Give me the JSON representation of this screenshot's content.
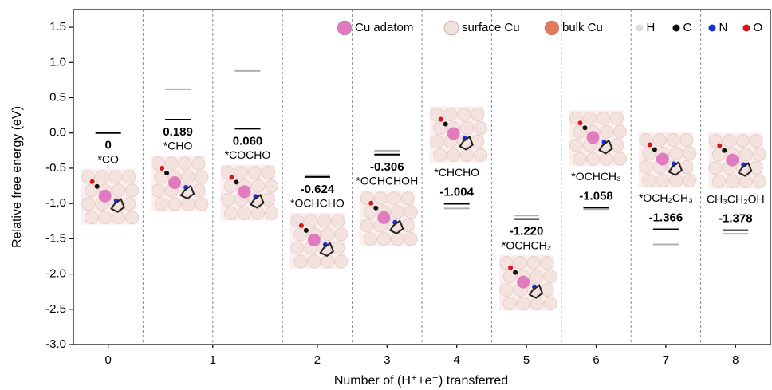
{
  "chart_data": {
    "type": "energy_levels",
    "y_label": "Relative free energy (eV)",
    "x_label": "Number of (H⁺+e⁻) transferred",
    "ylim": [
      -3.0,
      1.75
    ],
    "yticks": [
      1.5,
      {
        "value": 1,
        "label": "1.0"
      },
      0.5,
      {
        "value": 0,
        "label": "0.0"
      },
      -0.5,
      {
        "value": -1,
        "label": "-1.0"
      },
      -1.5,
      {
        "value": -2,
        "label": "-2.0"
      },
      -2.5,
      {
        "value": -3,
        "label": "-3.0"
      }
    ],
    "xticks": [
      0,
      1,
      2,
      3,
      4,
      5,
      6,
      7,
      8
    ],
    "steps": [
      0,
      1,
      1,
      2,
      3,
      4,
      5,
      6,
      7,
      8
    ],
    "states": [
      "*CO",
      "*CHO",
      "*COCHO",
      "*OCHCHO",
      "*OCHCHOH",
      "*CHCHO",
      "*OCHCH₂",
      "*OCHCH₃",
      "*OCH₂CH₃",
      "CH₃CH₂OH"
    ],
    "values": [
      0,
      0.189,
      0.06,
      -0.624,
      -0.306,
      -1.004,
      -1.22,
      -1.058,
      -1.366,
      -1.378
    ],
    "value_labels": [
      "0",
      "0.189",
      "0.060",
      "-0.624",
      "-0.306",
      "-1.004",
      "-1.220",
      "-1.058",
      "-1.366",
      "-1.378"
    ],
    "alt_values": [
      null,
      0.62,
      0.88,
      -0.6,
      -0.25,
      -1.07,
      -1.17,
      -1.08,
      -1.58,
      -1.43
    ],
    "color": "#000000",
    "alt_color": "#b0b0b0",
    "legend": [
      {
        "name": "Cu adatom",
        "color": "#e07bbf"
      },
      {
        "name": "surface Cu",
        "color": "#f2e0dc"
      },
      {
        "name": "bulk Cu",
        "color": "#e07a5a"
      },
      {
        "name": "H",
        "color": "#dddddd"
      },
      {
        "name": "C",
        "color": "#111111"
      },
      {
        "name": "N",
        "color": "#1a2fd0"
      },
      {
        "name": "O",
        "color": "#d41a1a"
      }
    ]
  }
}
